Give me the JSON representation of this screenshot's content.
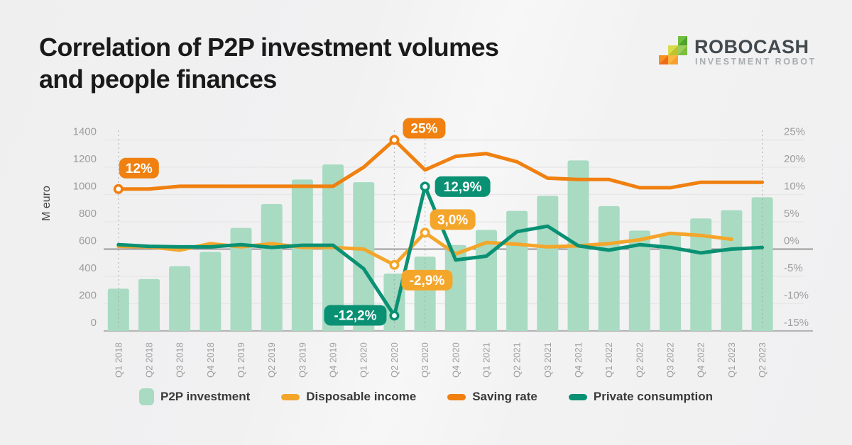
{
  "title": {
    "line1": "Correlation of P2P investment volumes",
    "line2": "and people finances"
  },
  "logo": {
    "name": "ROBOCASH",
    "tagline": "INVESTMENT ROBOT"
  },
  "chart_data": {
    "type": "bar-line-combo",
    "categories": [
      "Q1 2018",
      "Q2 2018",
      "Q3 2018",
      "Q4 2018",
      "Q1 2019",
      "Q2 2019",
      "Q3 2019",
      "Q4 2019",
      "Q1 2020",
      "Q2 2020",
      "Q3 2020",
      "Q4 2020",
      "Q1 2021",
      "Q2 2021",
      "Q3 2021",
      "Q4 2021",
      "Q1 2022",
      "Q2 2022",
      "Q3 2022",
      "Q4 2022",
      "Q1 2023",
      "Q2 2023"
    ],
    "left_axis": {
      "label": "M euro",
      "ticks": [
        1400,
        1200,
        1000,
        800,
        600,
        400,
        200,
        0
      ],
      "range": [
        0,
        1400
      ]
    },
    "right_axis": {
      "ticks": [
        "25%",
        "20%",
        "10%",
        "5%",
        "0%",
        "-5%",
        "-10%",
        "-15%"
      ],
      "tick_values": [
        25,
        20,
        10,
        5,
        0,
        -5,
        -10,
        -15
      ]
    },
    "grid": "horizontal-only",
    "legend_position": "bottom",
    "series": [
      {
        "key": "p2p",
        "name": "P2P investment",
        "type": "bar",
        "axis": "left",
        "color": "#a8dbc2",
        "values": [
          310,
          380,
          475,
          580,
          755,
          930,
          1110,
          1220,
          1090,
          420,
          545,
          630,
          740,
          880,
          990,
          1250,
          915,
          735,
          715,
          825,
          885,
          980
        ]
      },
      {
        "key": "income",
        "name": "Disposable income",
        "type": "line",
        "axis": "right",
        "color": "#f4a62b",
        "values": [
          0.5,
          0.4,
          -0.2,
          1.0,
          0.4,
          1.0,
          0.3,
          0.3,
          0.0,
          -2.9,
          3.0,
          -0.9,
          1.2,
          0.9,
          0.4,
          0.6,
          1.0,
          1.7,
          2.9,
          2.5,
          1.8,
          null
        ]
      },
      {
        "key": "saving",
        "name": "Saving rate",
        "type": "line",
        "axis": "right",
        "color": "#f0800f",
        "values": [
          12,
          12,
          13,
          13,
          13,
          13,
          13,
          13,
          20,
          25,
          19,
          22,
          22.5,
          21,
          16,
          15.5,
          15.5,
          12.5,
          12.5,
          14.5,
          14.5,
          14.5
        ]
      },
      {
        "key": "consumption",
        "name": "Private consumption",
        "type": "line",
        "axis": "right",
        "color": "#0a9174",
        "values": [
          0.8,
          0.5,
          0.4,
          0.4,
          0.8,
          0.3,
          0.7,
          0.7,
          -3.6,
          -12.2,
          12.9,
          -2.0,
          -1.3,
          3.2,
          4.2,
          0.6,
          -0.2,
          0.8,
          0.3,
          -0.7,
          0.0,
          0.3
        ]
      }
    ],
    "annotations": [
      {
        "series": "saving",
        "category": "Q1 2018",
        "label": "12%",
        "ox": 1,
        "oy": -44,
        "w": 56
      },
      {
        "series": "saving",
        "category": "Q2 2020",
        "label": "25%",
        "ox": 12,
        "oy": -31,
        "w": 60
      },
      {
        "series": "consumption",
        "category": "Q3 2020",
        "label": "12,9%",
        "ox": 14,
        "oy": -14.5,
        "w": 78
      },
      {
        "series": "income",
        "category": "Q3 2020",
        "label": "3,0%",
        "ox": 7,
        "oy": -33,
        "w": 64
      },
      {
        "series": "income",
        "category": "Q2 2020",
        "label": "-2,9%",
        "ox": 10,
        "oy": 7,
        "w": 72
      },
      {
        "series": "consumption",
        "category": "Q2 2020",
        "label": "-12,2%",
        "ox": -99,
        "oy": -15,
        "w": 88
      }
    ],
    "guide_quarters": [
      "Q1 2018",
      "Q2 2020",
      "Q3 2020",
      "Q2 2023"
    ],
    "colors": {
      "grid": "#e7e7e7",
      "zero_line": "#8a8a8a",
      "baseline": "#b5b5b5",
      "tick_text": "#9d9d9d",
      "axis_title": "#454545",
      "guide_line": "#a5a5a5",
      "badge_text": "#ffffff"
    }
  }
}
